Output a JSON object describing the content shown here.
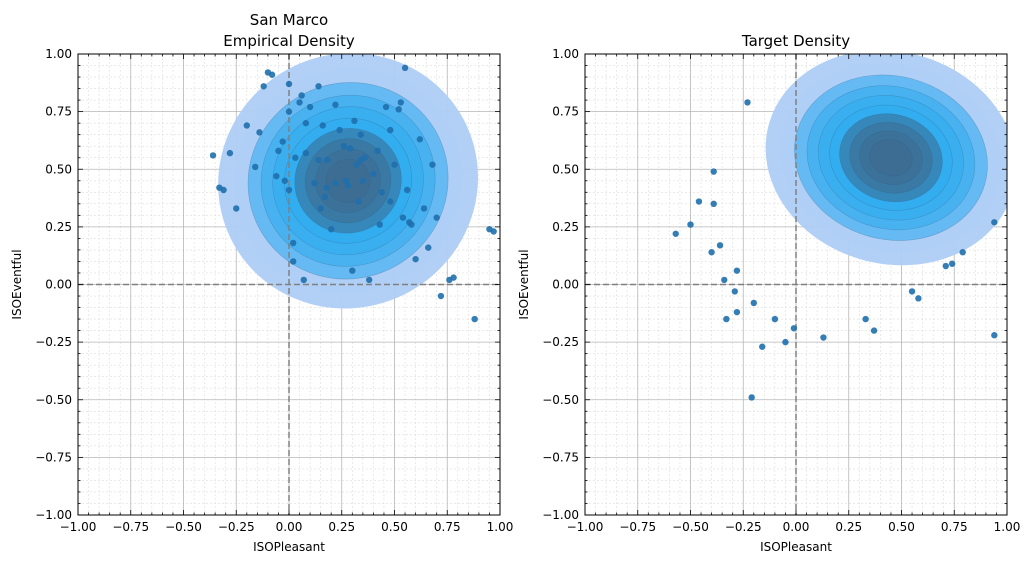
{
  "chart_data": [
    {
      "type": "scatter",
      "title": [
        "San Marco",
        "Empirical Density"
      ],
      "xlabel": "ISOPleasant",
      "ylabel": "ISOEventful",
      "xlim": [
        -1.0,
        1.0
      ],
      "ylim": [
        -1.0,
        1.0
      ],
      "xticks": [
        "−1.00",
        "−0.75",
        "−0.50",
        "−0.25",
        "0.00",
        "0.25",
        "0.50",
        "0.75",
        "1.00"
      ],
      "yticks": [
        "−1.00",
        "−0.75",
        "−0.50",
        "−0.25",
        "0.00",
        "0.25",
        "0.50",
        "0.75",
        "1.00"
      ],
      "grid": true,
      "reference_lines": [
        0,
        0
      ],
      "density_center": [
        0.28,
        0.45
      ],
      "density_extent": [
        0.62,
        0.55
      ],
      "density_tilt_deg": -28,
      "density_levels": 10,
      "colors": {
        "outer": "#aecdf5",
        "mid": "#2aaaf0",
        "inner": "#3d6a8e",
        "points": "#1f6fad"
      },
      "points": [
        [
          -0.36,
          0.56
        ],
        [
          -0.33,
          0.42
        ],
        [
          -0.31,
          0.41
        ],
        [
          -0.28,
          0.57
        ],
        [
          -0.25,
          0.33
        ],
        [
          -0.2,
          0.69
        ],
        [
          -0.16,
          0.51
        ],
        [
          -0.14,
          0.66
        ],
        [
          -0.12,
          0.86
        ],
        [
          -0.1,
          0.92
        ],
        [
          -0.08,
          0.91
        ],
        [
          -0.06,
          0.47
        ],
        [
          -0.05,
          0.58
        ],
        [
          -0.03,
          0.62
        ],
        [
          -0.02,
          0.45
        ],
        [
          0.0,
          0.41
        ],
        [
          0.0,
          0.87
        ],
        [
          0.0,
          0.75
        ],
        [
          0.02,
          0.18
        ],
        [
          0.02,
          0.1
        ],
        [
          0.03,
          0.55
        ],
        [
          0.05,
          0.79
        ],
        [
          0.06,
          0.82
        ],
        [
          0.07,
          0.02
        ],
        [
          0.08,
          0.7
        ],
        [
          0.08,
          0.57
        ],
        [
          0.1,
          0.77
        ],
        [
          0.12,
          0.44
        ],
        [
          0.14,
          0.86
        ],
        [
          0.14,
          0.54
        ],
        [
          0.15,
          0.33
        ],
        [
          0.16,
          0.69
        ],
        [
          0.17,
          0.38
        ],
        [
          0.18,
          0.42
        ],
        [
          0.18,
          0.54
        ],
        [
          0.2,
          0.24
        ],
        [
          0.22,
          0.44
        ],
        [
          0.22,
          0.78
        ],
        [
          0.24,
          0.67
        ],
        [
          0.26,
          0.6
        ],
        [
          0.27,
          0.45
        ],
        [
          0.28,
          0.43
        ],
        [
          0.29,
          0.59
        ],
        [
          0.3,
          0.06
        ],
        [
          0.31,
          0.71
        ],
        [
          0.32,
          0.52
        ],
        [
          0.33,
          0.36
        ],
        [
          0.34,
          0.54
        ],
        [
          0.34,
          0.65
        ],
        [
          0.35,
          0.45
        ],
        [
          0.36,
          0.55
        ],
        [
          0.38,
          0.02
        ],
        [
          0.4,
          0.48
        ],
        [
          0.42,
          0.58
        ],
        [
          0.43,
          0.26
        ],
        [
          0.44,
          0.4
        ],
        [
          0.46,
          0.77
        ],
        [
          0.48,
          0.67
        ],
        [
          0.48,
          0.36
        ],
        [
          0.5,
          0.52
        ],
        [
          0.52,
          0.76
        ],
        [
          0.53,
          0.79
        ],
        [
          0.54,
          0.29
        ],
        [
          0.55,
          0.94
        ],
        [
          0.56,
          0.41
        ],
        [
          0.57,
          0.27
        ],
        [
          0.58,
          0.26
        ],
        [
          0.6,
          0.11
        ],
        [
          0.62,
          0.63
        ],
        [
          0.64,
          0.33
        ],
        [
          0.66,
          0.16
        ],
        [
          0.68,
          0.52
        ],
        [
          0.7,
          0.29
        ],
        [
          0.72,
          -0.05
        ],
        [
          0.76,
          0.02
        ],
        [
          0.78,
          0.03
        ],
        [
          0.88,
          -0.15
        ],
        [
          0.95,
          0.24
        ],
        [
          0.97,
          0.23
        ]
      ]
    },
    {
      "type": "scatter",
      "title": [
        "Target Density"
      ],
      "xlabel": "ISOPleasant",
      "ylabel": "ISOEventful",
      "xlim": [
        -1.0,
        1.0
      ],
      "ylim": [
        -1.0,
        1.0
      ],
      "xticks": [
        "−1.00",
        "−0.75",
        "−0.50",
        "−0.25",
        "0.00",
        "0.25",
        "0.50",
        "0.75",
        "1.00"
      ],
      "yticks": [
        "−1.00",
        "−0.75",
        "−0.50",
        "−0.25",
        "0.00",
        "0.25",
        "0.50",
        "0.75",
        "1.00"
      ],
      "grid": true,
      "reference_lines": [
        0,
        0
      ],
      "density_center": [
        0.45,
        0.55
      ],
      "density_extent": [
        0.6,
        0.46
      ],
      "density_tilt_deg": 15,
      "density_levels": 10,
      "colors": {
        "outer": "#aecdf5",
        "mid": "#2aaaf0",
        "inner": "#3d6a8e",
        "points": "#1f6fad"
      },
      "points": [
        [
          -0.57,
          0.22
        ],
        [
          -0.5,
          0.26
        ],
        [
          -0.46,
          0.36
        ],
        [
          -0.4,
          0.14
        ],
        [
          -0.39,
          0.49
        ],
        [
          -0.39,
          0.35
        ],
        [
          -0.36,
          0.17
        ],
        [
          -0.34,
          0.02
        ],
        [
          -0.33,
          -0.15
        ],
        [
          -0.29,
          -0.03
        ],
        [
          -0.28,
          0.06
        ],
        [
          -0.28,
          -0.12
        ],
        [
          -0.23,
          0.79
        ],
        [
          -0.21,
          -0.49
        ],
        [
          -0.2,
          -0.08
        ],
        [
          -0.16,
          -0.27
        ],
        [
          -0.1,
          -0.15
        ],
        [
          -0.05,
          -0.25
        ],
        [
          -0.01,
          -0.19
        ],
        [
          0.13,
          -0.23
        ],
        [
          0.33,
          -0.15
        ],
        [
          0.37,
          -0.2
        ],
        [
          0.55,
          -0.03
        ],
        [
          0.58,
          -0.06
        ],
        [
          0.71,
          0.08
        ],
        [
          0.74,
          0.09
        ],
        [
          0.79,
          0.14
        ],
        [
          0.94,
          -0.22
        ],
        [
          0.94,
          0.27
        ]
      ]
    }
  ]
}
